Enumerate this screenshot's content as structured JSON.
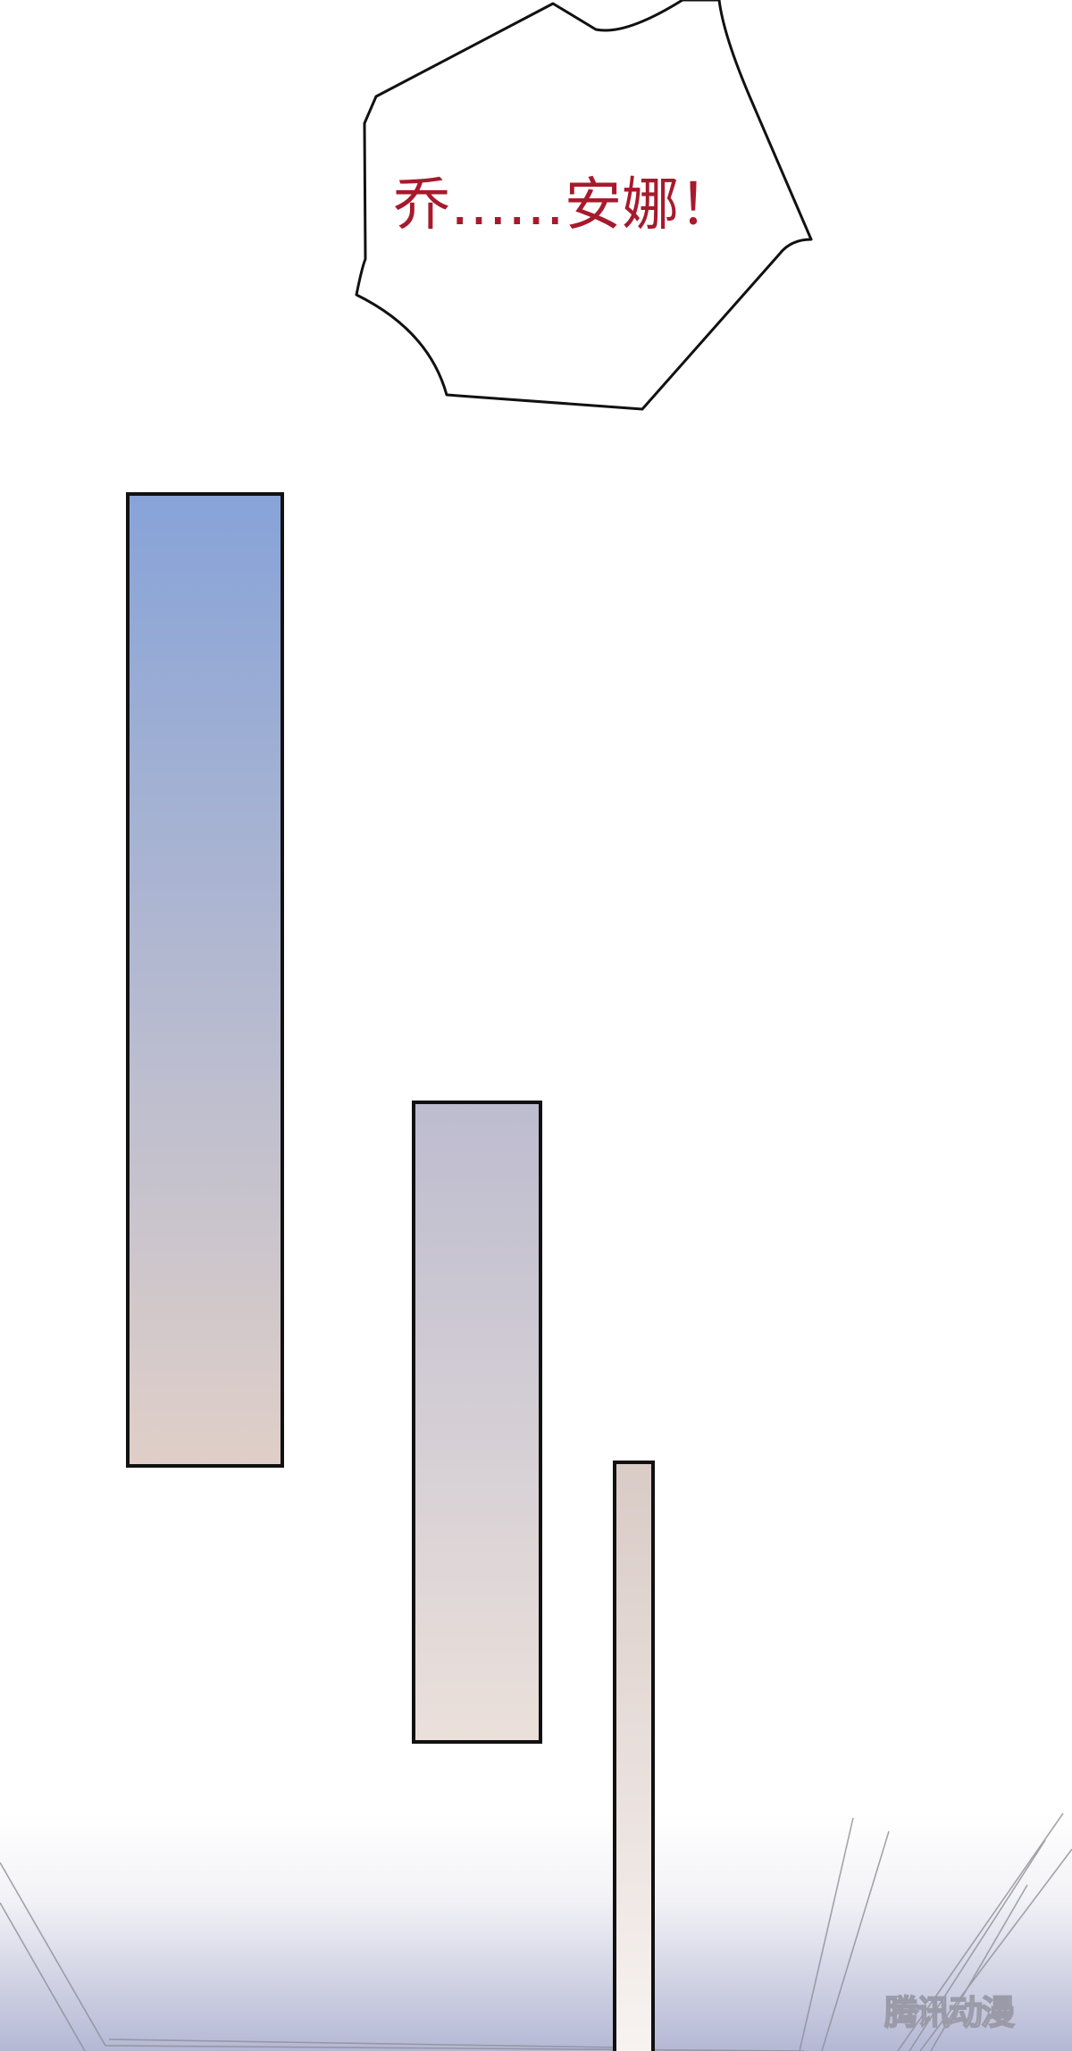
{
  "speech_bubble": {
    "text": "乔……安娜！",
    "text_color": "#a8192c"
  },
  "panels": [
    {
      "name": "tall-panel",
      "gradient": [
        "#87a3d8",
        "#e0cfc8"
      ]
    },
    {
      "name": "middle-panel",
      "gradient": [
        "#bdbccf",
        "#ebe0da"
      ]
    },
    {
      "name": "narrow-panel",
      "gradient": [
        "#d9cbc6",
        "#f8f3f1"
      ]
    }
  ],
  "floor_gradient": [
    "#ffffff",
    "#b4b8d4"
  ],
  "watermark": {
    "text": "腾讯动漫"
  }
}
